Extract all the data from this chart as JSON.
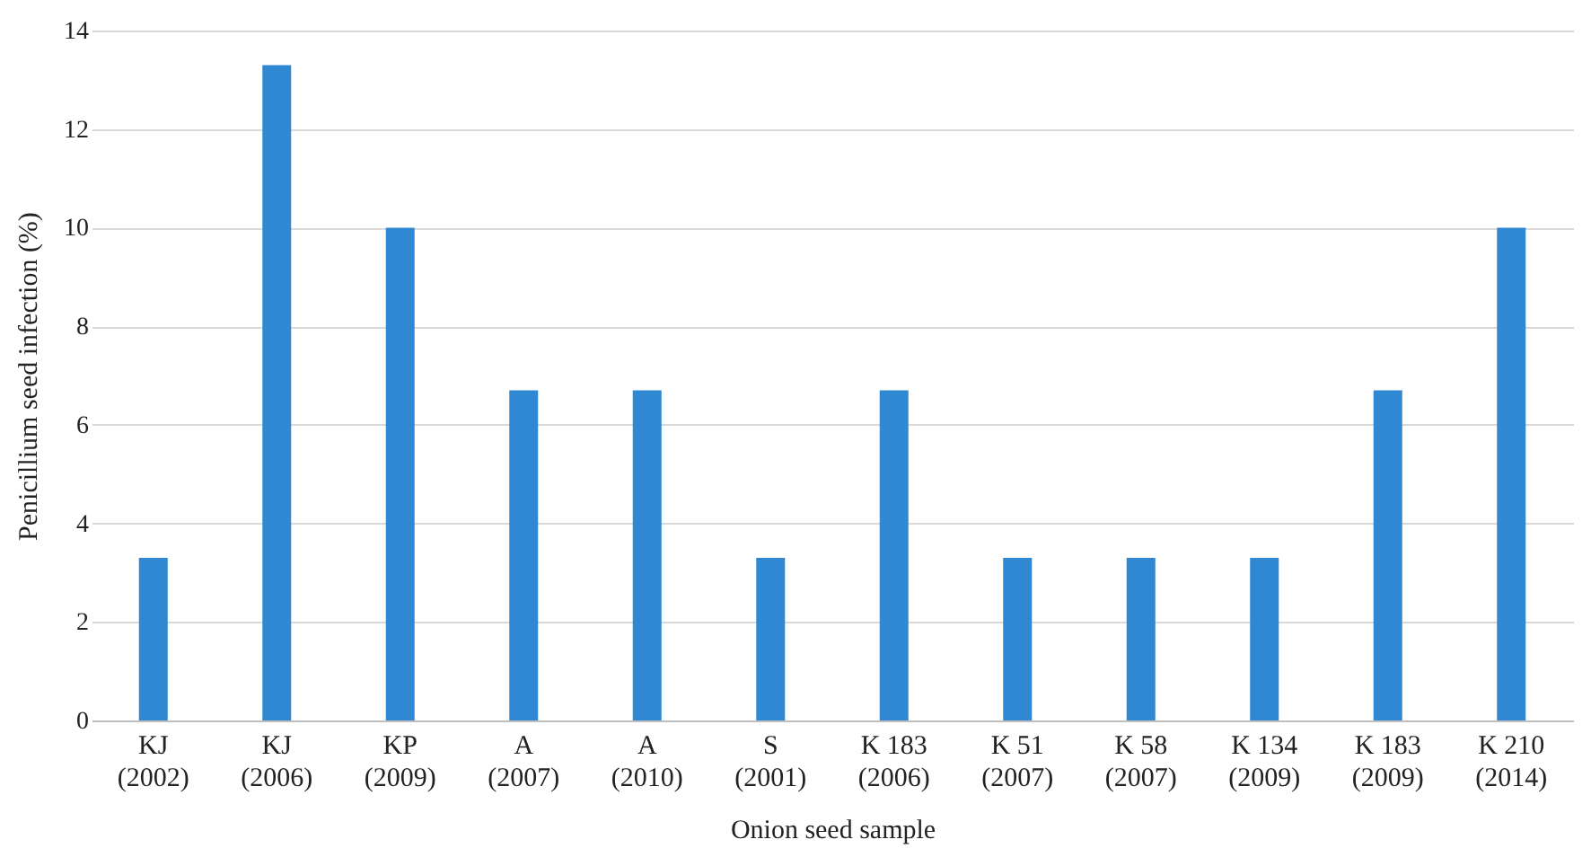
{
  "chart_data": {
    "type": "bar",
    "xlabel": "Onion seed sample",
    "ylabel": "Penicillium seed infection (%)",
    "categories": [
      "KJ\n(2002)",
      "KJ\n(2006)",
      "KP\n(2009)",
      "A\n(2007)",
      "A\n(2010)",
      "S\n(2001)",
      "K 183\n(2006)",
      "K 51\n(2007)",
      "K 58\n(2007)",
      "K 134\n(2009)",
      "K 183\n(2009)",
      "K 210\n(2014)"
    ],
    "values": [
      3.3,
      13.3,
      10,
      6.7,
      6.7,
      3.3,
      6.7,
      3.3,
      3.3,
      3.3,
      6.7,
      10
    ],
    "color": "#2f88d1",
    "ylim": [
      0,
      14
    ],
    "yticks": [
      0,
      2,
      4,
      6,
      8,
      10,
      12,
      14
    ],
    "grid": "y"
  }
}
